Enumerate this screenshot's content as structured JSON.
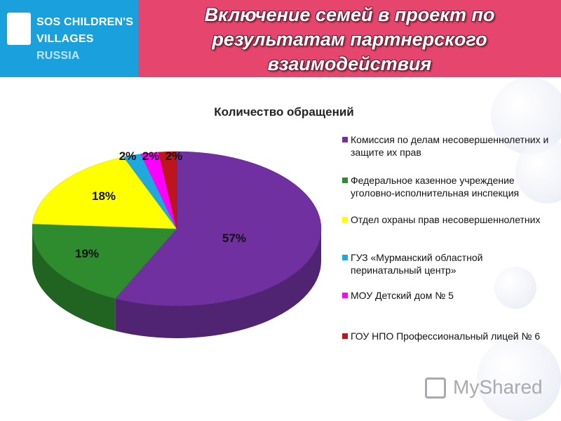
{
  "logo": {
    "line1": "SOS CHILDREN'S",
    "line2": "VILLAGES",
    "line3": "RUSSIA"
  },
  "header": {
    "title_lines": [
      "Включение семей в проект по",
      "результатам партнерского",
      "взаимодействия"
    ]
  },
  "colors": {
    "header_bg": "#e6466e",
    "logo_bg": "#1aa0dd"
  },
  "chart_data": {
    "type": "pie",
    "title": "Количество обращений",
    "categories": [
      "Комиссия по делам несовершеннолетних и защите их прав",
      "Федеральное казенное учреждение уголовно-исполнительная инспекция",
      "Отдел охраны прав несовершеннолетних",
      "ГУЗ «Мурманский областной перинатальный центр»",
      "МОУ Детский дом № 5",
      "ГОУ НПО Профессиональный лицей № 6"
    ],
    "values": [
      57,
      19,
      18,
      2,
      2,
      2
    ],
    "labels": [
      "57%",
      "19%",
      "18%",
      "2%",
      "2%",
      "2%"
    ],
    "colors": [
      "#7030a0",
      "#2e8b2e",
      "#ffff00",
      "#1fa9df",
      "#ff00ff",
      "#c0141c"
    ],
    "legend_position": "right"
  },
  "watermark": {
    "text": "MyShared",
    "icon": "presentation-board-icon"
  }
}
